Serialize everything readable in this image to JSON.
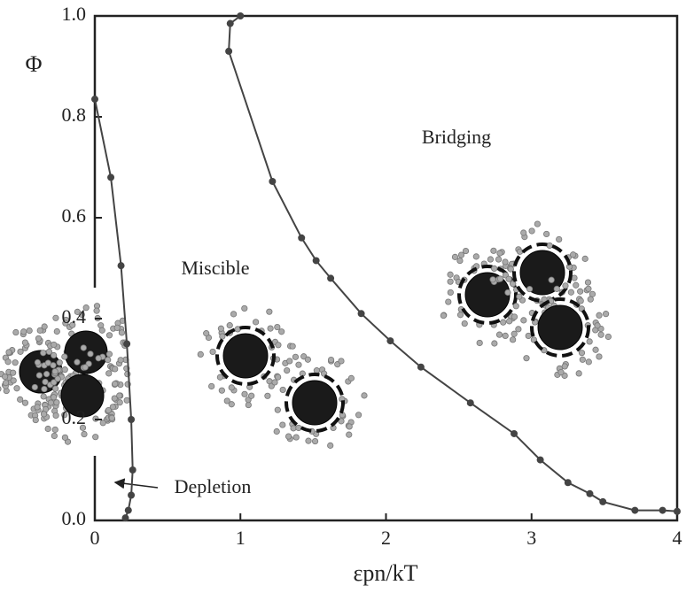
{
  "chart_data": {
    "type": "line",
    "ylabel": "Φ",
    "xlabel": "εpn/kT",
    "xlim": [
      0,
      4
    ],
    "ylim": [
      0,
      1
    ],
    "xticks": [
      0,
      1,
      2,
      3,
      4
    ],
    "yticks": [
      {
        "value": 0,
        "label": "0.0"
      },
      0.2,
      0.4,
      0.6,
      0.8,
      {
        "value": 1,
        "label": "1.0"
      }
    ],
    "series": [
      {
        "color": "#444444",
        "x": [
          0,
          0.11,
          0.18,
          0.22,
          0.25,
          0.26,
          0.25,
          0.23,
          0.21
        ],
        "values": [
          0.835,
          0.68,
          0.505,
          0.35,
          0.2,
          0.1,
          0.05,
          0.02,
          0.005
        ]
      },
      {
        "color": "#444444",
        "x": [
          1.0,
          0.93,
          0.92,
          1.22,
          1.42,
          1.52,
          1.62,
          1.83,
          2.03,
          2.24,
          2.58,
          2.88,
          3.06,
          3.25,
          3.4,
          3.49,
          3.71,
          3.9,
          4.0
        ],
        "values": [
          1.0,
          0.985,
          0.93,
          0.672,
          0.56,
          0.515,
          0.48,
          0.41,
          0.356,
          0.304,
          0.233,
          0.172,
          0.12,
          0.075,
          0.053,
          0.037,
          0.02,
          0.02,
          0.018
        ]
      }
    ],
    "annotations": [
      "Bridging",
      "Miscible",
      "Depletion"
    ]
  }
}
